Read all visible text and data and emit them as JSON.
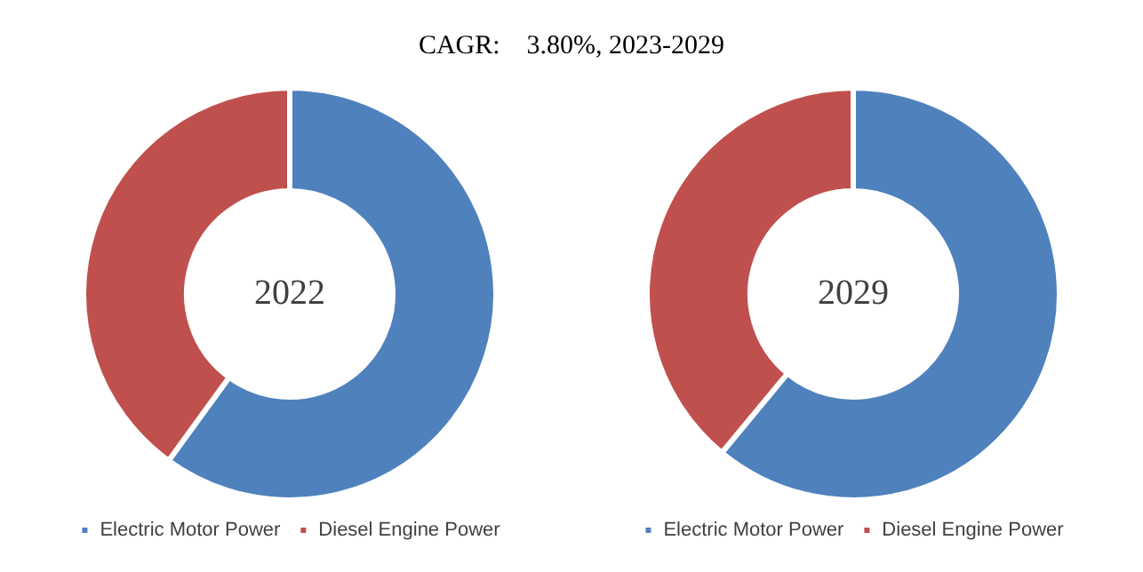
{
  "chart_data": [
    {
      "type": "donut",
      "title": "CAGR:    3.80%, 2023-2029",
      "categories": [
        "Electric Motor Power",
        "Diesel Engine Power"
      ],
      "values": [
        60,
        40
      ],
      "colors": [
        "#4f81bd",
        "#c0504d"
      ],
      "annotations": [
        "2022"
      ],
      "legend": "bottom"
    },
    {
      "type": "donut",
      "categories": [
        "Electric Motor Power",
        "Diesel Engine Power"
      ],
      "values": [
        61,
        39
      ],
      "colors": [
        "#4f81bd",
        "#c0504d"
      ],
      "annotations": [
        "2029"
      ],
      "legend": "bottom"
    }
  ]
}
